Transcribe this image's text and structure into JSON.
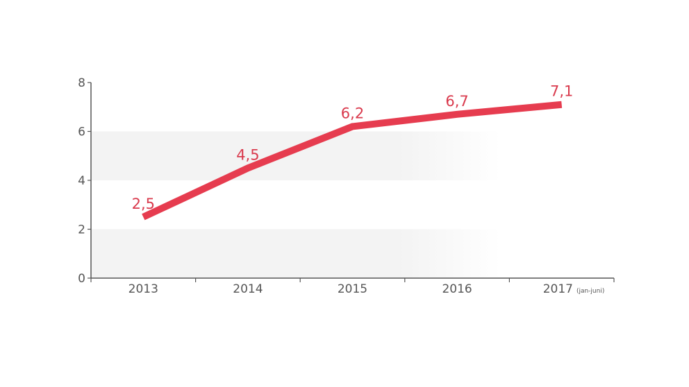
{
  "chart_data": {
    "type": "line",
    "title": "",
    "xlabel": "",
    "ylabel": "",
    "categories": [
      "2013",
      "2014",
      "2015",
      "2016",
      "2017"
    ],
    "category_notes": [
      "",
      "",
      "",
      "",
      "(jan-juni)"
    ],
    "series": [
      {
        "values": [
          2.5,
          4.5,
          6.2,
          6.7,
          7.1
        ]
      }
    ],
    "data_labels": [
      "2,5",
      "4,5",
      "6,2",
      "6,7",
      "7,1"
    ],
    "yticks": [
      "0",
      "2",
      "4",
      "6",
      "8"
    ],
    "ylim": [
      0,
      8
    ],
    "grid": "alternating horizontal bands",
    "colors": {
      "line": "#e63c4f",
      "label": "#d9394c",
      "axis": "#555555",
      "band": "#f3f3f3"
    }
  }
}
